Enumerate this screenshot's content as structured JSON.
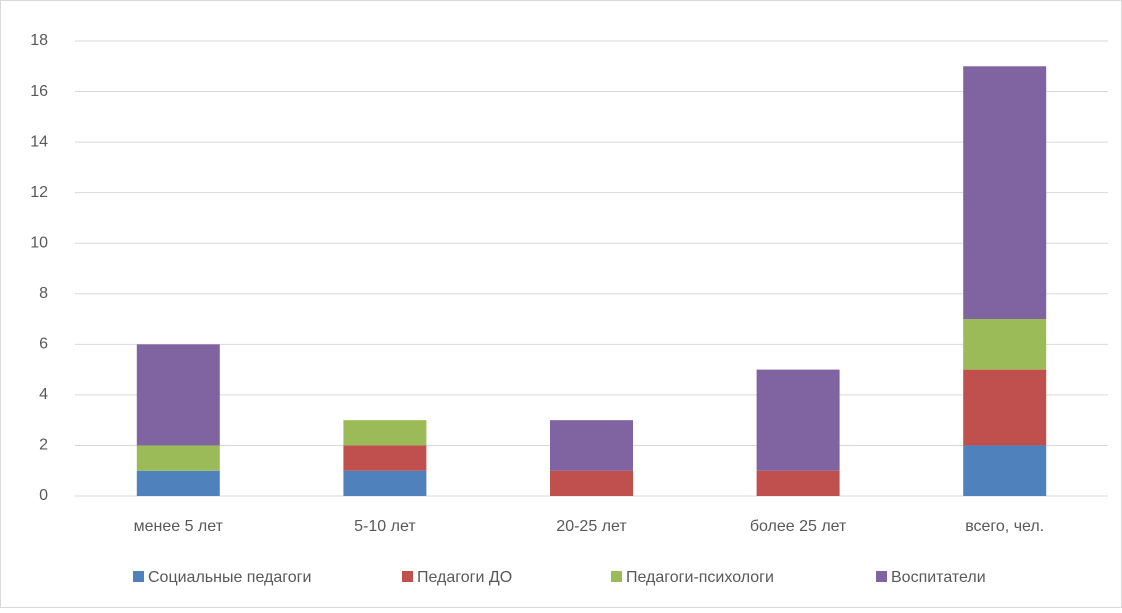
{
  "chart_data": {
    "type": "stacked_bar",
    "categories": [
      "менее 5 лет",
      "5-10 лет",
      "20-25 лет",
      "более 25 лет",
      "всего, чел."
    ],
    "series": [
      {
        "name": "Социальные педагоги",
        "color": "#4f81bd",
        "values": [
          1,
          1,
          0,
          0,
          2
        ]
      },
      {
        "name": "Педагоги ДО",
        "color": "#c0504d",
        "values": [
          0,
          1,
          1,
          1,
          3
        ]
      },
      {
        "name": "Педагоги-психологи",
        "color": "#9bbb59",
        "values": [
          1,
          1,
          0,
          0,
          2
        ]
      },
      {
        "name": "Воспитатели",
        "color": "#8064a2",
        "values": [
          4,
          0,
          2,
          4,
          10
        ]
      }
    ],
    "ylim": [
      0,
      18
    ],
    "yticks": [
      0,
      2,
      4,
      6,
      8,
      10,
      12,
      14,
      16,
      18
    ],
    "grid": true,
    "legend": "bottom"
  }
}
